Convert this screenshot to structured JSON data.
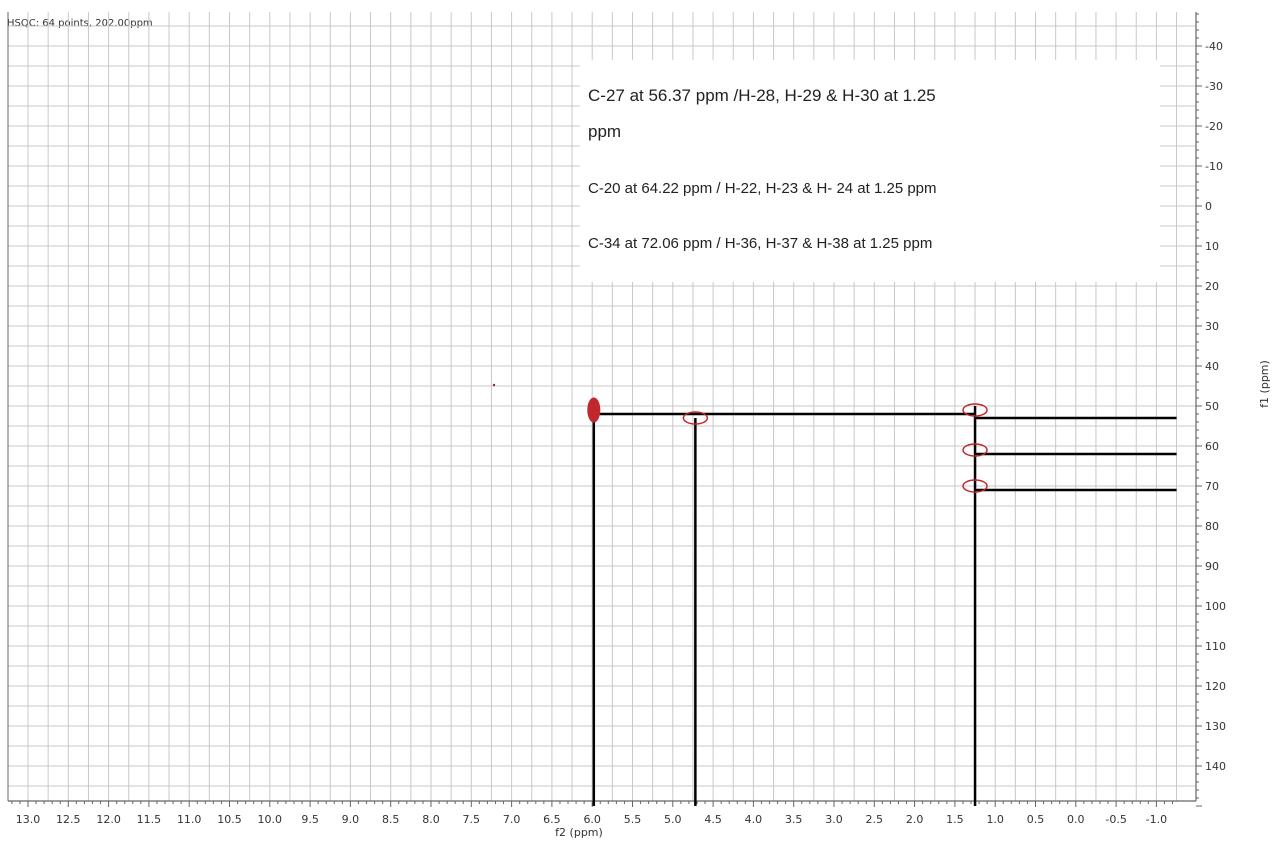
{
  "chart_data": {
    "type": "scatter",
    "header": "HSQC: 64 points, 202.00ppm",
    "xlabel": "f2 (ppm)",
    "ylabel": "f1 (ppm)",
    "xlim": [
      13.25,
      -1.25
    ],
    "ylim": [
      -50,
      150
    ],
    "x_reversed": true,
    "y_reversed": true,
    "grid": true,
    "x_ticks": [
      "13.0",
      "12.5",
      "12.0",
      "11.5",
      "11.0",
      "10.5",
      "10.0",
      "9.5",
      "9.0",
      "8.5",
      "8.0",
      "7.5",
      "7.0",
      "6.5",
      "6.0",
      "5.5",
      "5.0",
      "4.5",
      "4.0",
      "3.5",
      "3.0",
      "2.5",
      "2.0",
      "1.5",
      "1.0",
      "0.5",
      "0.0",
      "-0.5",
      "-1.0"
    ],
    "y_ticks": [
      "-40",
      "-30",
      "-20",
      "-10",
      "0",
      "10",
      "20",
      "30",
      "40",
      "50",
      "60",
      "70",
      "80",
      "90",
      "100",
      "110",
      "120",
      "130",
      "140"
    ],
    "peaks": [
      {
        "x": 5.98,
        "y": 51,
        "filled": true
      },
      {
        "x": 4.72,
        "y": 53,
        "filled": false
      },
      {
        "x": 1.25,
        "y": 51,
        "filled": false
      },
      {
        "x": 1.25,
        "y": 61,
        "filled": false
      },
      {
        "x": 1.25,
        "y": 70,
        "filled": false
      }
    ],
    "correlation_lines": [
      {
        "orientation": "vertical",
        "x": 5.98,
        "y_from": 51,
        "y_to": 150
      },
      {
        "orientation": "vertical",
        "x": 4.72,
        "y_from": 53,
        "y_to": 150
      },
      {
        "orientation": "vertical",
        "x": 1.25,
        "y_from": 50,
        "y_to": 150
      },
      {
        "orientation": "horizontal",
        "y": 52,
        "x_from": 5.98,
        "x_to": 1.25
      },
      {
        "orientation": "horizontal",
        "y": 53,
        "x_from": 1.25,
        "x_to": -1.25
      },
      {
        "orientation": "horizontal",
        "y": 62,
        "x_from": 1.25,
        "x_to": -1.25
      },
      {
        "orientation": "horizontal",
        "y": 71,
        "x_from": 1.25,
        "x_to": -1.25
      }
    ],
    "annotations": [
      {
        "line1": "C-27 at 56.37 ppm /H-28, H-29 & H-30 at 1.25",
        "line2": "ppm"
      },
      {
        "line1": "C-20 at 64.22 ppm  / H-22, H-23 & H- 24 at 1.25 ppm"
      },
      {
        "line1": "C-34 at 72.06 ppm  / H-36, H-37 & H-38 at 1.25 ppm"
      }
    ],
    "colors": {
      "peak": "#c0282d",
      "line": "#000000",
      "grid": "#c8c8c8",
      "axis": "#666666"
    }
  }
}
